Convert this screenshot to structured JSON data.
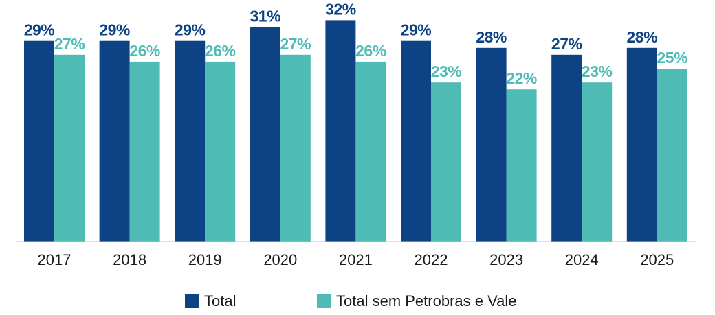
{
  "chart_data": {
    "type": "bar",
    "categories": [
      "2017",
      "2018",
      "2019",
      "2020",
      "2021",
      "2022",
      "2023",
      "2024",
      "2025"
    ],
    "series": [
      {
        "name": "Total",
        "values": [
          29,
          29,
          29,
          31,
          32,
          29,
          28,
          27,
          28
        ],
        "labels": [
          "29%",
          "29%",
          "29%",
          "31%",
          "32%",
          "29%",
          "28%",
          "27%",
          "28%"
        ],
        "color": "#0d4284"
      },
      {
        "name": "Total sem Petrobras e Vale",
        "values": [
          27,
          26,
          26,
          27,
          26,
          23,
          22,
          23,
          25
        ],
        "labels": [
          "27%",
          "26%",
          "26%",
          "27%",
          "26%",
          "23%",
          "22%",
          "23%",
          "25%"
        ],
        "color": "#4fbbb5"
      }
    ],
    "title": "",
    "xlabel": "",
    "ylabel": "",
    "ylim": [
      0,
      35
    ],
    "grid": false,
    "legend_position": "bottom"
  }
}
